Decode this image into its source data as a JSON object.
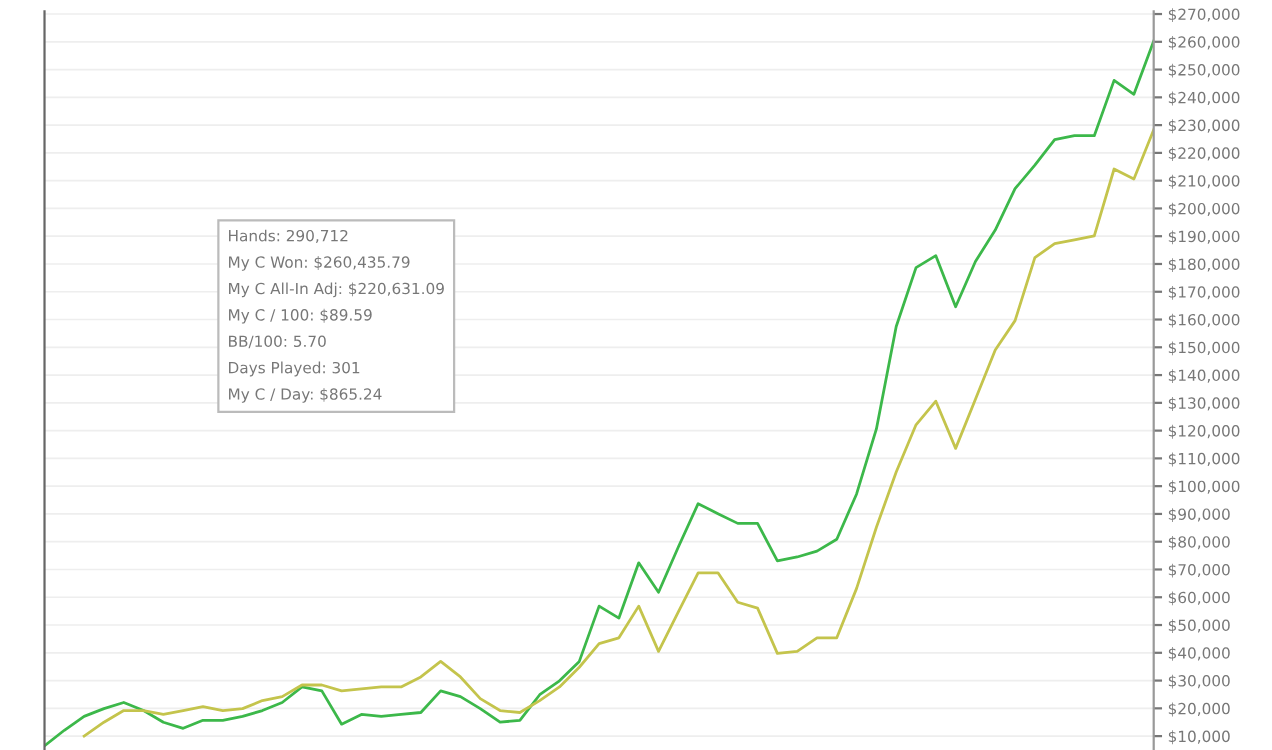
{
  "chart_data": {
    "type": "line",
    "categories": [
      null,
      null,
      null,
      null,
      null,
      null,
      null,
      null,
      null,
      null,
      null,
      null,
      null,
      null,
      null,
      null,
      null,
      null,
      null,
      null,
      null,
      null,
      null,
      null,
      null,
      null,
      null,
      null,
      null,
      null,
      null,
      null,
      null,
      null,
      null,
      null,
      null,
      null,
      null,
      null,
      null,
      null,
      null,
      null,
      null,
      null,
      null,
      null,
      null,
      null,
      null,
      null,
      null,
      null,
      null,
      null,
      null
    ],
    "series": [
      {
        "color": "#3cb84a",
        "values": [
          6500,
          12100,
          17100,
          19900,
          22100,
          19200,
          15000,
          12800,
          15700,
          15700,
          17100,
          19200,
          22100,
          27700,
          26300,
          14300,
          17800,
          17100,
          17800,
          18500,
          26300,
          24200,
          19900,
          15000,
          15700,
          24900,
          29900,
          36900,
          56800,
          52500,
          72400,
          61800,
          78100,
          93700,
          90100,
          86600,
          86600,
          73100,
          74500,
          76600,
          80900,
          97200,
          120600,
          157500,
          178700,
          183000,
          164600,
          180900,
          192200,
          207100,
          215600,
          224800,
          226200,
          226200,
          246100,
          241100,
          260300
        ]
      },
      {
        "color": "#c4c44c",
        "values": [
          null,
          null,
          10000,
          15000,
          19200,
          19200,
          17800,
          19200,
          20600,
          19200,
          19900,
          22800,
          24200,
          28400,
          28400,
          26300,
          27000,
          27700,
          27700,
          31300,
          36900,
          31300,
          23500,
          19200,
          18500,
          22800,
          27700,
          34800,
          43300,
          45400,
          56800,
          40500,
          54700,
          68800,
          68800,
          58200,
          56100,
          39800,
          40500,
          45400,
          45400,
          63200,
          85200,
          105100,
          122100,
          130600,
          113600,
          131300,
          149000,
          159600,
          182300,
          187300,
          188700,
          190100,
          214200,
          210600,
          228300
        ]
      }
    ],
    "ylim": [
      5000,
      271000
    ],
    "yticks": [
      {
        "value": 10000,
        "label": "$10,000"
      },
      {
        "value": 20000,
        "label": "$20,000"
      },
      {
        "value": 30000,
        "label": "$30,000"
      },
      {
        "value": 40000,
        "label": "$40,000"
      },
      {
        "value": 50000,
        "label": "$50,000"
      },
      {
        "value": 60000,
        "label": "$60,000"
      },
      {
        "value": 70000,
        "label": "$70,000"
      },
      {
        "value": 80000,
        "label": "$80,000"
      },
      {
        "value": 90000,
        "label": "$90,000"
      },
      {
        "value": 100000,
        "label": "$100,000"
      },
      {
        "value": 110000,
        "label": "$110,000"
      },
      {
        "value": 120000,
        "label": "$120,000"
      },
      {
        "value": 130000,
        "label": "$130,000"
      },
      {
        "value": 140000,
        "label": "$140,000"
      },
      {
        "value": 150000,
        "label": "$150,000"
      },
      {
        "value": 160000,
        "label": "$160,000"
      },
      {
        "value": 170000,
        "label": "$170,000"
      },
      {
        "value": 180000,
        "label": "$180,000"
      },
      {
        "value": 190000,
        "label": "$190,000"
      },
      {
        "value": 200000,
        "label": "$200,000"
      },
      {
        "value": 210000,
        "label": "$210,000"
      },
      {
        "value": 220000,
        "label": "$220,000"
      },
      {
        "value": 230000,
        "label": "$230,000"
      },
      {
        "value": 240000,
        "label": "$240,000"
      },
      {
        "value": 250000,
        "label": "$250,000"
      },
      {
        "value": 260000,
        "label": "$260,000"
      },
      {
        "value": 270000,
        "label": "$270,000"
      }
    ],
    "annotations": [
      "Hands: 290,712",
      "My C Won: $260,435.79",
      "My C All-In Adj: $220,631.09",
      "My C / 100: $89.59",
      "BB/100: 5.70",
      "Days Played: 301",
      "My C / Day: $865.24"
    ],
    "grid": "y",
    "tick_labels": "y",
    "marker": "none",
    "line_style": "solid",
    "legend": false
  }
}
